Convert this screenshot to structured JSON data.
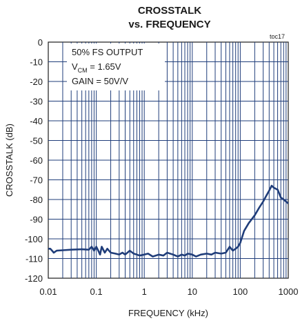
{
  "chart_data": {
    "type": "line",
    "title_line1": "CROSSTALK",
    "title_line2": "vs. FREQUENCY",
    "figure_id": "toc17",
    "xlabel": "FREQUENCY (kHz)",
    "ylabel": "CROSSTALK (dB)",
    "xscale": "log",
    "xlim": [
      0.01,
      1000
    ],
    "ylim": [
      -120,
      0
    ],
    "x_ticks": [
      0.01,
      0.1,
      1,
      10,
      100,
      1000
    ],
    "x_tick_labels": [
      "0.01",
      "0.1",
      "1",
      "10",
      "100",
      "1000"
    ],
    "y_ticks": [
      0,
      -10,
      -20,
      -30,
      -40,
      -50,
      -60,
      -70,
      -80,
      -90,
      -100,
      -110,
      -120
    ],
    "y_tick_labels": [
      "0",
      "-10",
      "-20",
      "-30",
      "-40",
      "-50",
      "-60",
      "-70",
      "-80",
      "-90",
      "-100",
      "-110",
      "-120"
    ],
    "grid": true,
    "annotation": {
      "line1": "50% FS OUTPUT",
      "line2_prefix": "V",
      "line2_sub": "CM",
      "line2_suffix": " = 1.65V",
      "line3": "GAIN = 50V/V"
    },
    "series": [
      {
        "color": "#1f3d7a",
        "x": [
          0.01,
          0.011,
          0.012,
          0.013,
          0.015,
          0.02,
          0.03,
          0.05,
          0.07,
          0.08,
          0.09,
          0.1,
          0.11,
          0.12,
          0.13,
          0.15,
          0.17,
          0.2,
          0.25,
          0.3,
          0.35,
          0.4,
          0.5,
          0.6,
          0.7,
          0.8,
          1,
          1.2,
          1.5,
          2,
          2.5,
          3,
          4,
          5,
          6,
          7,
          8,
          10,
          12,
          15,
          20,
          25,
          30,
          40,
          50,
          60,
          70,
          80,
          90,
          100,
          120,
          150,
          200,
          250,
          300,
          350,
          400,
          450,
          500,
          600,
          700,
          800,
          1000
        ],
        "y": [
          -105,
          -105,
          -106,
          -107,
          -106,
          -105.8,
          -105.5,
          -105.3,
          -105.5,
          -104,
          -106,
          -104,
          -106,
          -108,
          -104,
          -107,
          -105,
          -107,
          -107.5,
          -108,
          -107,
          -108,
          -106,
          -107.5,
          -108,
          -108.5,
          -108,
          -107.5,
          -109,
          -108,
          -108.5,
          -107,
          -108,
          -109,
          -108,
          -108.5,
          -107.5,
          -108,
          -109,
          -108,
          -107.5,
          -108,
          -107,
          -107.5,
          -107,
          -104,
          -106,
          -105,
          -104,
          -102,
          -96,
          -92,
          -88,
          -84,
          -81,
          -78,
          -75.5,
          -73,
          -74,
          -75,
          -79,
          -80,
          -82
        ]
      }
    ]
  }
}
